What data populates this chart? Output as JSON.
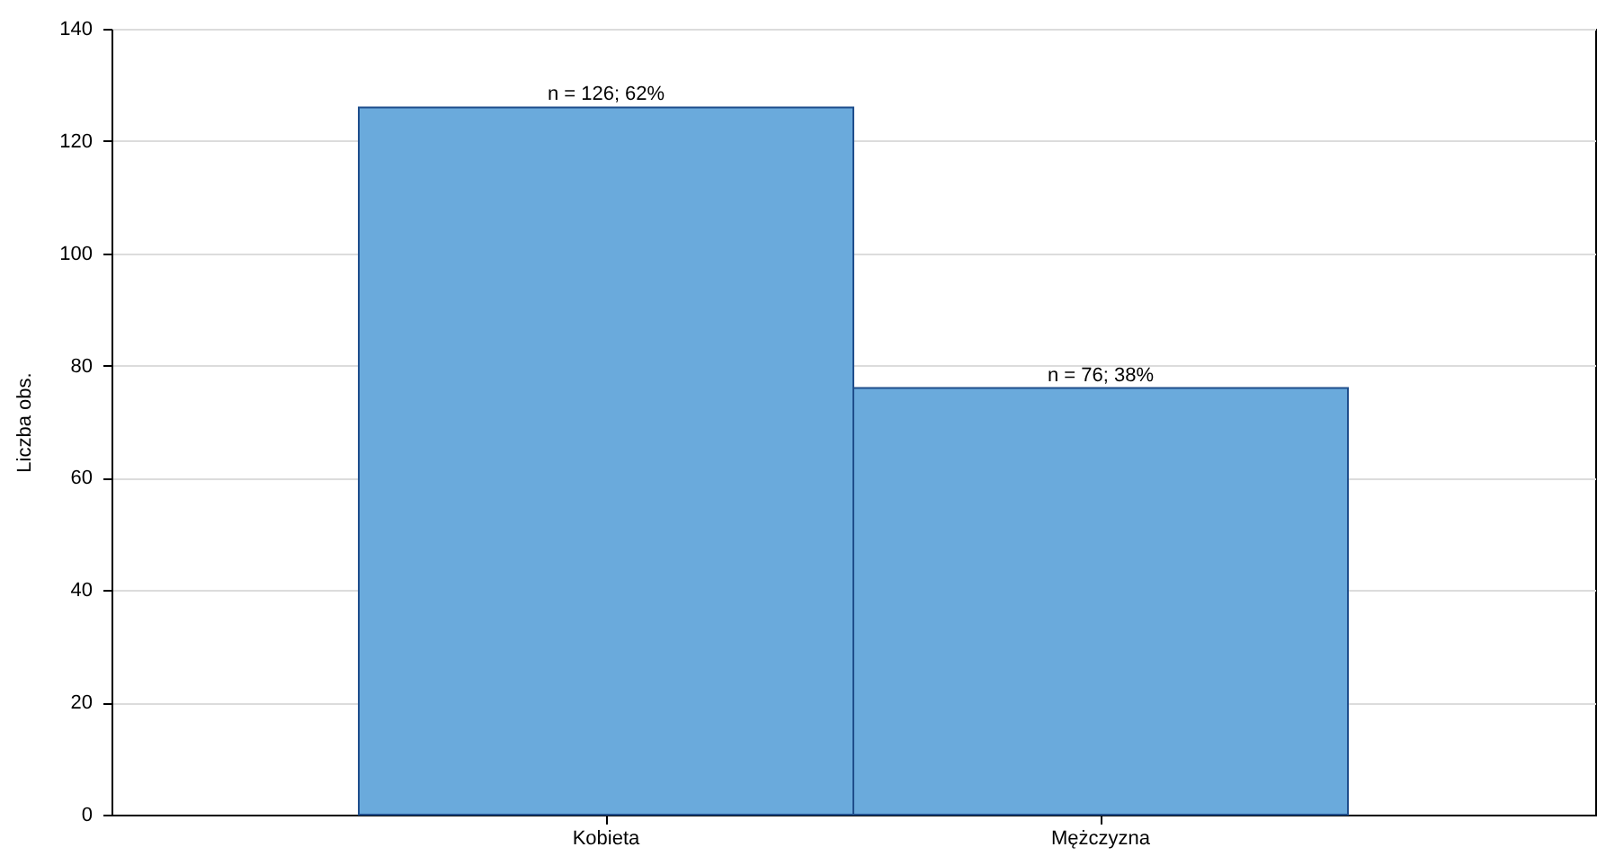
{
  "chart_data": {
    "type": "bar",
    "categories": [
      "Kobieta",
      "Mężczyzna"
    ],
    "values": [
      126,
      76
    ],
    "value_labels": [
      "n = 126; 62%",
      "n = 76; 38%"
    ],
    "color": "#6aaadc",
    "ylabel": "Liczba obs.",
    "ylim": [
      0,
      140
    ],
    "yticks": [
      0,
      20,
      40,
      60,
      80,
      100,
      120,
      140
    ],
    "grid": "y"
  }
}
